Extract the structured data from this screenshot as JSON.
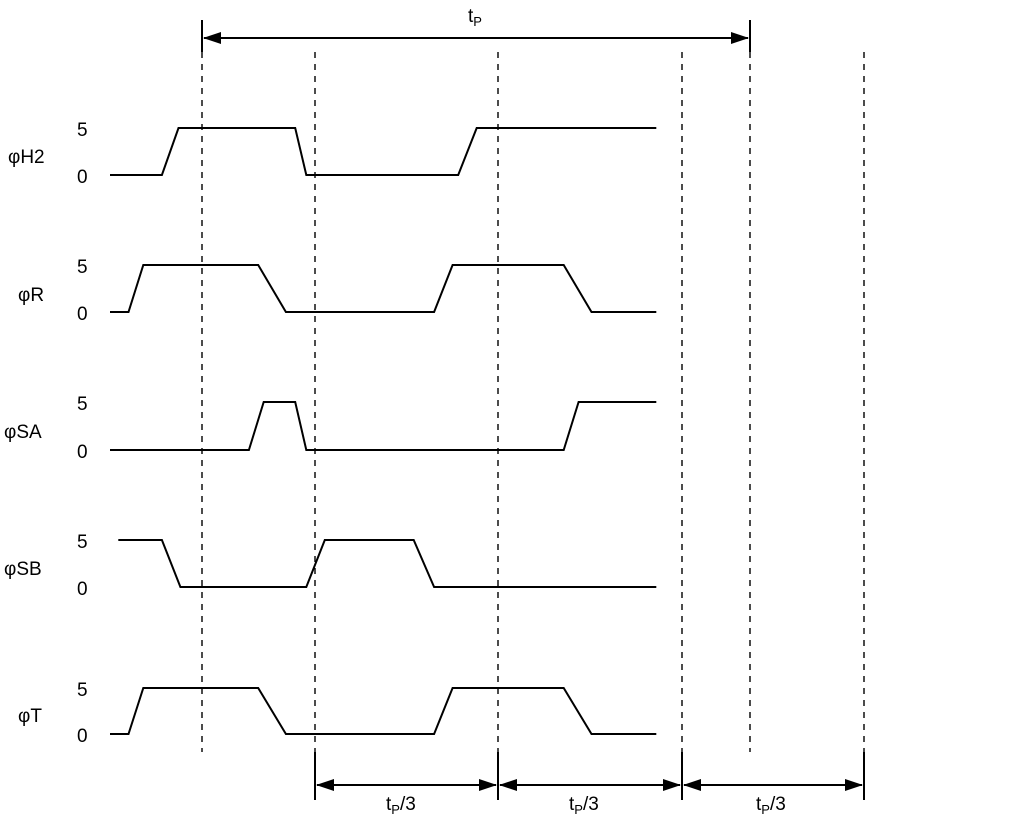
{
  "period": {
    "label_base": "t",
    "label_sub": "P",
    "from_edge": 0,
    "to_edge": 3
  },
  "third_intervals": [
    {
      "label_base": "t",
      "label_sub": "P",
      "label_tail": "/3",
      "from_edge": 1,
      "to_edge": 2
    },
    {
      "label_base": "t",
      "label_sub": "P",
      "label_tail": "/3",
      "from_edge": 2,
      "to_edge": 4
    },
    {
      "label_base": "t",
      "label_sub": "P",
      "label_tail": "/3",
      "from_edge": 4,
      "to_edge": 5
    }
  ],
  "signals": [
    {
      "id": "h2",
      "name": "φH2",
      "high_label": "5",
      "low_label": "0",
      "points": [
        [
          0.0,
          0
        ],
        [
          0.56,
          0
        ],
        [
          0.74,
          1
        ],
        [
          2.0,
          1
        ],
        [
          2.12,
          0
        ],
        [
          3.76,
          0
        ],
        [
          3.96,
          1
        ],
        [
          5.9,
          1
        ]
      ]
    },
    {
      "id": "r",
      "name": "φR",
      "high_label": "5",
      "low_label": "0",
      "points": [
        [
          0.0,
          0
        ],
        [
          0.2,
          0
        ],
        [
          0.36,
          1
        ],
        [
          1.6,
          1
        ],
        [
          1.9,
          0
        ],
        [
          3.5,
          0
        ],
        [
          3.7,
          1
        ],
        [
          4.9,
          1
        ],
        [
          5.2,
          0
        ],
        [
          5.9,
          0
        ]
      ]
    },
    {
      "id": "sa",
      "name": "φSA",
      "high_label": "5",
      "low_label": "0",
      "points": [
        [
          0.0,
          0
        ],
        [
          1.5,
          0
        ],
        [
          1.66,
          1
        ],
        [
          2.0,
          1
        ],
        [
          2.12,
          0
        ],
        [
          4.9,
          0
        ],
        [
          5.06,
          1
        ],
        [
          5.9,
          1
        ]
      ]
    },
    {
      "id": "sb",
      "name": "φSB",
      "high_label": "5",
      "low_label": "0",
      "points": [
        [
          0.09,
          1
        ],
        [
          0.56,
          1
        ],
        [
          0.76,
          0
        ],
        [
          2.12,
          0
        ],
        [
          2.32,
          1
        ],
        [
          3.28,
          1
        ],
        [
          3.5,
          0
        ],
        [
          5.9,
          0
        ]
      ]
    },
    {
      "id": "t",
      "name": "φT",
      "high_label": "5",
      "low_label": "0",
      "points": [
        [
          0.0,
          0
        ],
        [
          0.2,
          0
        ],
        [
          0.36,
          1
        ],
        [
          1.6,
          1
        ],
        [
          1.9,
          0
        ],
        [
          3.5,
          0
        ],
        [
          3.7,
          1
        ],
        [
          4.9,
          1
        ],
        [
          5.2,
          0
        ],
        [
          5.9,
          0
        ]
      ]
    }
  ]
}
